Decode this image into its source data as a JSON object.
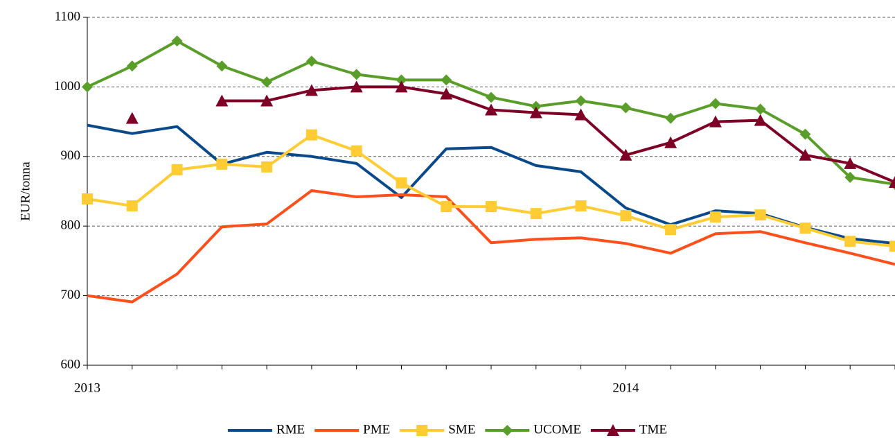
{
  "chart_data": {
    "type": "line",
    "ylabel": "EUR/tonna",
    "categories": [
      "2013",
      null,
      null,
      null,
      null,
      null,
      null,
      null,
      null,
      null,
      null,
      null,
      "2014",
      null,
      null,
      null,
      null,
      null,
      null
    ],
    "series": [
      {
        "name": "RME",
        "color": "#0a4a8c",
        "marker": "none",
        "values": [
          945,
          933,
          943,
          889,
          906,
          900,
          890,
          841,
          911,
          913,
          887,
          878,
          826,
          802,
          822,
          818,
          798,
          782,
          775
        ]
      },
      {
        "name": "PME",
        "color": "#ff4f1a",
        "marker": "none",
        "values": [
          700,
          691,
          731,
          799,
          803,
          851,
          842,
          845,
          842,
          776,
          781,
          783,
          775,
          761,
          789,
          792,
          776,
          761,
          745
        ]
      },
      {
        "name": "SME",
        "color": "#ffcc33",
        "marker": "square",
        "values": [
          839,
          829,
          881,
          889,
          885,
          931,
          908,
          862,
          828,
          828,
          818,
          829,
          815,
          795,
          813,
          816,
          797,
          778,
          771
        ]
      },
      {
        "name": "UCOME",
        "color": "#5a9e2a",
        "marker": "diamond",
        "values": [
          1000,
          1030,
          1066,
          1030,
          1007,
          1037,
          1018,
          1010,
          1010,
          985,
          972,
          980,
          970,
          955,
          976,
          968,
          932,
          870,
          860
        ]
      },
      {
        "name": "TME",
        "color": "#7f0026",
        "marker": "triangle",
        "values": [
          null,
          955,
          null,
          980,
          980,
          995,
          1000,
          1000,
          990,
          967,
          963,
          960,
          902,
          920,
          950,
          952,
          902,
          890,
          863
        ]
      }
    ],
    "ylim": [
      600,
      1100
    ],
    "yticks": [
      600,
      700,
      800,
      900,
      1000,
      1100
    ],
    "grid": true,
    "legend": "bottom"
  }
}
